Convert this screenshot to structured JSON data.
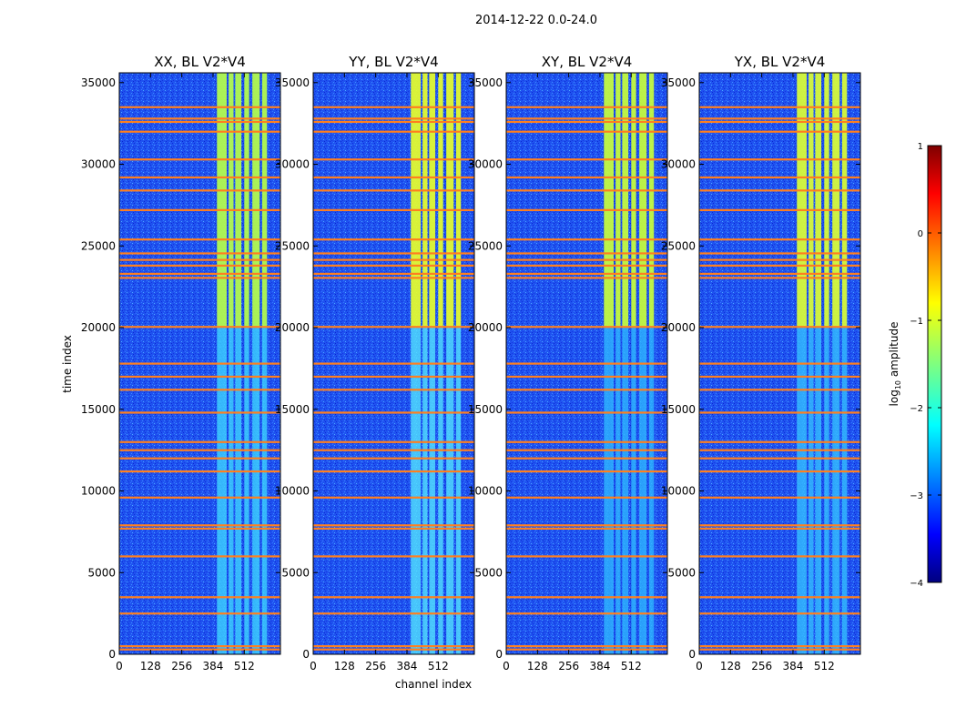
{
  "chart_data": {
    "type": "heatmap",
    "suptitle": "2014-12-22 0.0-24.0",
    "xlabel": "channel index",
    "ylabel": "time index",
    "xlim": [
      0,
      660
    ],
    "ylim": [
      0,
      35600
    ],
    "xticks": [
      0,
      128,
      256,
      384,
      512
    ],
    "yticks": [
      0,
      5000,
      10000,
      15000,
      20000,
      25000,
      30000,
      35000
    ],
    "panels": [
      {
        "title": "XX, BL V2*V4",
        "pol": "XX"
      },
      {
        "title": "YY, BL V2*V4",
        "pol": "YY"
      },
      {
        "title": "XY, BL V2*V4",
        "pol": "XY"
      },
      {
        "title": "YX, BL V2*V4",
        "pol": "YX"
      }
    ],
    "flagged_time_rows": [
      300,
      500,
      2500,
      3500,
      6000,
      7700,
      7900,
      9600,
      11200,
      12000,
      12500,
      13000,
      14800,
      16200,
      17000,
      17800,
      20050,
      23050,
      23300,
      23800,
      24150,
      24550,
      25400,
      27200,
      28400,
      29200,
      30300,
      32000,
      32600,
      32800,
      33500
    ],
    "bright_band_channels": [
      [
        400,
        440
      ],
      [
        448,
        468
      ],
      [
        475,
        500
      ],
      [
        512,
        532
      ],
      [
        545,
        575
      ],
      [
        585,
        605
      ]
    ],
    "colorbar": {
      "label": "log10 amplitude",
      "min": -4,
      "max": 1,
      "ticks": [
        1,
        0,
        -1,
        -2,
        -3,
        -4
      ],
      "colormap": "jet"
    }
  }
}
